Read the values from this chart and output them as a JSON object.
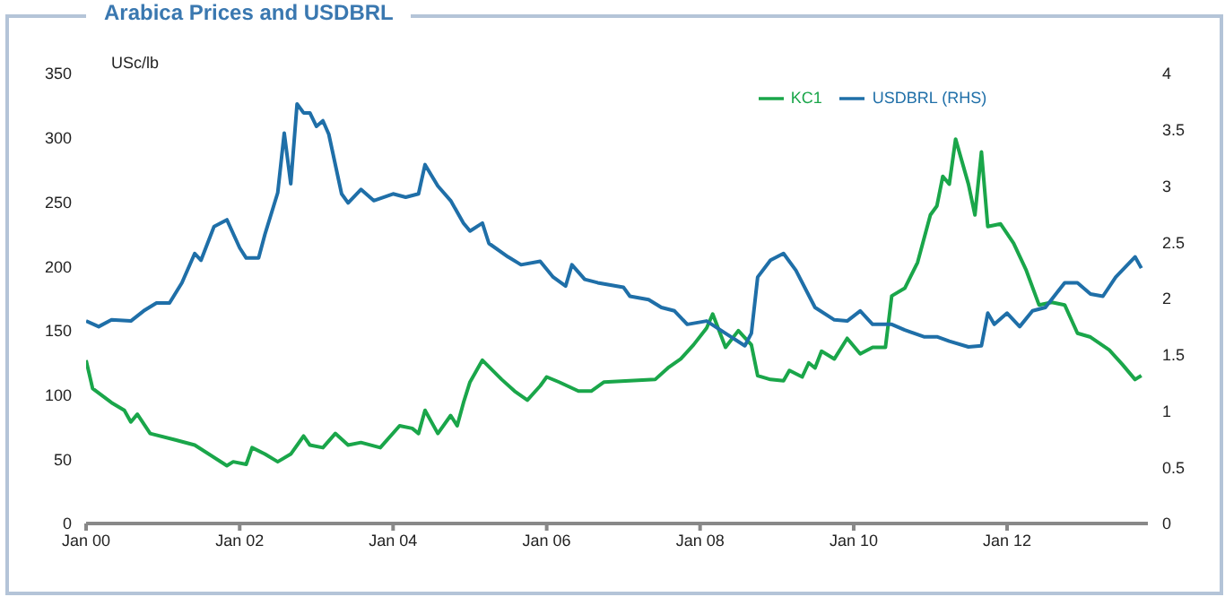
{
  "chart_data": {
    "type": "line",
    "title": "Arabica Prices and USDBRL",
    "ylabel": "USc/lb",
    "legend": "top",
    "marker": "none",
    "xlim": [
      "2000-01",
      "2013-11"
    ],
    "xticks": [
      {
        "value": "2000-01",
        "label": "Jan 00"
      },
      {
        "value": "2002-01",
        "label": "Jan 02"
      },
      {
        "value": "2004-01",
        "label": "Jan 04"
      },
      {
        "value": "2006-01",
        "label": "Jan 06"
      },
      {
        "value": "2008-01",
        "label": "Jan 08"
      },
      {
        "value": "2010-01",
        "label": "Jan 10"
      },
      {
        "value": "2012-01",
        "label": "Jan 12"
      }
    ],
    "ylim": [
      0,
      350
    ],
    "yticks": [
      0,
      50,
      100,
      150,
      200,
      250,
      300,
      350
    ],
    "y2lim": [
      0,
      4
    ],
    "y2ticks": [
      0,
      0.5,
      1,
      1.5,
      2,
      2.5,
      3,
      3.5,
      4
    ],
    "series": [
      {
        "name": "KC1",
        "color": "#1aa64a",
        "x": [
          "2000-01",
          "2000-02",
          "2000-05",
          "2000-07",
          "2000-08",
          "2000-09",
          "2000-11",
          "2001-03",
          "2001-06",
          "2001-11",
          "2001-12",
          "2002-02",
          "2002-03",
          "2002-05",
          "2002-07",
          "2002-09",
          "2002-11",
          "2002-12",
          "2003-02",
          "2003-04",
          "2003-06",
          "2003-08",
          "2003-11",
          "2004-02",
          "2004-04",
          "2004-05",
          "2004-06",
          "2004-08",
          "2004-10",
          "2004-11",
          "2004-12",
          "2005-01",
          "2005-03",
          "2005-06",
          "2005-08",
          "2005-10",
          "2005-12",
          "2006-01",
          "2006-03",
          "2006-06",
          "2006-08",
          "2006-10",
          "2007-06",
          "2007-08",
          "2007-10",
          "2007-12",
          "2008-02",
          "2008-03",
          "2008-05",
          "2008-07",
          "2008-09",
          "2008-10",
          "2008-12",
          "2009-02",
          "2009-03",
          "2009-05",
          "2009-06",
          "2009-07",
          "2009-08",
          "2009-10",
          "2009-12",
          "2010-02",
          "2010-04",
          "2010-06",
          "2010-07",
          "2010-09",
          "2010-11",
          "2011-01",
          "2011-02",
          "2011-03",
          "2011-04",
          "2011-05",
          "2011-07",
          "2011-08",
          "2011-09",
          "2011-10",
          "2011-12",
          "2012-02",
          "2012-04",
          "2012-06",
          "2012-08",
          "2012-10",
          "2012-12",
          "2013-02",
          "2013-05",
          "2013-07",
          "2013-09",
          "2013-10"
        ],
        "values": [
          127,
          105,
          94,
          88,
          79,
          85,
          70,
          65,
          61,
          45,
          48,
          46,
          59,
          54,
          48,
          54,
          68,
          61,
          59,
          70,
          61,
          63,
          59,
          76,
          74,
          70,
          88,
          70,
          84,
          76,
          94,
          110,
          127,
          112,
          103,
          96,
          107,
          114,
          110,
          103,
          103,
          110,
          112,
          121,
          128,
          139,
          152,
          163,
          137,
          150,
          139,
          115,
          112,
          111,
          119,
          114,
          125,
          121,
          134,
          128,
          144,
          132,
          137,
          137,
          177,
          183,
          203,
          240,
          247,
          270,
          264,
          299,
          264,
          240,
          289,
          231,
          233,
          218,
          197,
          170,
          172,
          170,
          148,
          145,
          135,
          124,
          112,
          115
        ]
      },
      {
        "name": "USDBRL (RHS)",
        "color": "#1f6fa8",
        "axis": "y2",
        "x": [
          "2000-01",
          "2000-03",
          "2000-05",
          "2000-08",
          "2000-10",
          "2000-12",
          "2001-02",
          "2001-04",
          "2001-06",
          "2001-07",
          "2001-09",
          "2001-11",
          "2002-01",
          "2002-02",
          "2002-04",
          "2002-05",
          "2002-07",
          "2002-08",
          "2002-09",
          "2002-10",
          "2002-11",
          "2002-12",
          "2003-01",
          "2003-02",
          "2003-03",
          "2003-05",
          "2003-06",
          "2003-08",
          "2003-10",
          "2004-01",
          "2004-03",
          "2004-05",
          "2004-06",
          "2004-08",
          "2004-10",
          "2004-12",
          "2005-01",
          "2005-03",
          "2005-04",
          "2005-07",
          "2005-09",
          "2005-12",
          "2006-02",
          "2006-04",
          "2006-05",
          "2006-07",
          "2006-09",
          "2007-01",
          "2007-02",
          "2007-05",
          "2007-07",
          "2007-09",
          "2007-11",
          "2008-02",
          "2008-05",
          "2008-08",
          "2008-09",
          "2008-10",
          "2008-12",
          "2009-02",
          "2009-04",
          "2009-07",
          "2009-10",
          "2009-12",
          "2010-02",
          "2010-04",
          "2010-07",
          "2010-09",
          "2010-12",
          "2011-02",
          "2011-04",
          "2011-07",
          "2011-09",
          "2011-10",
          "2011-11",
          "2012-01",
          "2012-03",
          "2012-05",
          "2012-07",
          "2012-10",
          "2012-12",
          "2013-02",
          "2013-04",
          "2013-06",
          "2013-09",
          "2013-10"
        ],
        "values": [
          1.8,
          1.75,
          1.81,
          1.8,
          1.89,
          1.96,
          1.96,
          2.14,
          2.4,
          2.34,
          2.64,
          2.7,
          2.45,
          2.36,
          2.36,
          2.57,
          2.94,
          3.47,
          3.02,
          3.73,
          3.65,
          3.65,
          3.53,
          3.58,
          3.46,
          2.93,
          2.85,
          2.97,
          2.87,
          2.93,
          2.9,
          2.93,
          3.19,
          3.0,
          2.87,
          2.67,
          2.6,
          2.67,
          2.49,
          2.37,
          2.3,
          2.33,
          2.19,
          2.11,
          2.3,
          2.17,
          2.14,
          2.1,
          2.02,
          1.99,
          1.92,
          1.89,
          1.77,
          1.8,
          1.69,
          1.58,
          1.69,
          2.19,
          2.34,
          2.4,
          2.25,
          1.92,
          1.81,
          1.8,
          1.89,
          1.77,
          1.77,
          1.72,
          1.66,
          1.66,
          1.62,
          1.57,
          1.58,
          1.87,
          1.77,
          1.87,
          1.75,
          1.89,
          1.92,
          2.14,
          2.14,
          2.04,
          2.02,
          2.19,
          2.37,
          2.27
        ]
      }
    ]
  }
}
